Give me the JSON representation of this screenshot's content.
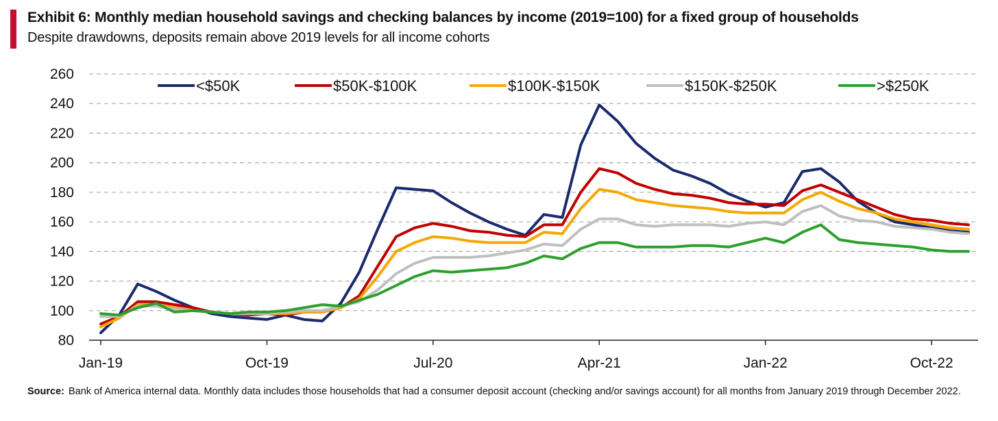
{
  "exhibit": {
    "title": "Exhibit 6: Monthly median household savings and checking balances by income (2019=100)  for a fixed group of households",
    "subtitle": "Despite drawdowns, deposits remain above 2019 levels for all income cohorts",
    "accent_color": "#c8102e"
  },
  "footnote": {
    "source_label": "Source:",
    "source_text": "Bank of America internal data. Monthly data includes those households  that had a consumer  deposit account  (checking  and/or savings account)  for all months from January 2019 through December 2022."
  },
  "chart_data": {
    "type": "line",
    "title": "",
    "xlabel": "",
    "ylabel": "",
    "ylim": [
      80,
      260
    ],
    "yticks": [
      80,
      100,
      120,
      140,
      160,
      180,
      200,
      220,
      240,
      260
    ],
    "grid": true,
    "legend_position": "top",
    "x": [
      "Jan-19",
      "Feb-19",
      "Mar-19",
      "Apr-19",
      "May-19",
      "Jun-19",
      "Jul-19",
      "Aug-19",
      "Sep-19",
      "Oct-19",
      "Nov-19",
      "Dec-19",
      "Jan-20",
      "Feb-20",
      "Mar-20",
      "Apr-20",
      "May-20",
      "Jun-20",
      "Jul-20",
      "Aug-20",
      "Sep-20",
      "Oct-20",
      "Nov-20",
      "Dec-20",
      "Jan-21",
      "Feb-21",
      "Mar-21",
      "Apr-21",
      "May-21",
      "Jun-21",
      "Jul-21",
      "Aug-21",
      "Sep-21",
      "Oct-21",
      "Nov-21",
      "Dec-21",
      "Jan-22",
      "Feb-22",
      "Mar-22",
      "Apr-22",
      "May-22",
      "Jun-22",
      "Jul-22",
      "Aug-22",
      "Sep-22",
      "Oct-22",
      "Nov-22",
      "Dec-22"
    ],
    "xtick_labels": [
      "Jan-19",
      "Oct-19",
      "Jul-20",
      "Apr-21",
      "Jan-22",
      "Oct-22"
    ],
    "series": [
      {
        "name": "<$50K",
        "color": "#1a2a6c",
        "values": [
          85,
          97,
          118,
          113,
          107,
          102,
          98,
          96,
          95,
          94,
          97,
          94,
          93,
          105,
          126,
          155,
          183,
          182,
          181,
          173,
          166,
          160,
          155,
          151,
          165,
          163,
          212,
          239,
          228,
          213,
          203,
          195,
          191,
          186,
          179,
          174,
          170,
          173,
          194,
          196,
          187,
          174,
          166,
          160,
          158,
          156,
          154,
          153
        ]
      },
      {
        "name": "$50K-$100K",
        "color": "#c00000",
        "values": [
          91,
          96,
          106,
          106,
          104,
          102,
          99,
          98,
          97,
          98,
          97,
          99,
          99,
          102,
          110,
          130,
          150,
          156,
          159,
          157,
          154,
          153,
          151,
          150,
          158,
          158,
          180,
          196,
          193,
          186,
          182,
          179,
          178,
          176,
          173,
          172,
          172,
          171,
          181,
          185,
          180,
          175,
          170,
          165,
          162,
          161,
          159,
          158
        ]
      },
      {
        "name": "$100K-$150K",
        "color": "#f5a800",
        "values": [
          89,
          95,
          104,
          104,
          102,
          100,
          99,
          98,
          98,
          98,
          98,
          99,
          99,
          102,
          108,
          123,
          140,
          146,
          150,
          149,
          147,
          146,
          146,
          146,
          153,
          152,
          169,
          182,
          180,
          175,
          173,
          171,
          170,
          169,
          167,
          166,
          166,
          166,
          175,
          180,
          174,
          169,
          166,
          162,
          160,
          158,
          156,
          155
        ]
      },
      {
        "name": "$150K-$250K",
        "color": "#bfbfbf",
        "values": [
          96,
          96,
          103,
          103,
          101,
          100,
          99,
          98,
          98,
          98,
          99,
          100,
          100,
          103,
          106,
          114,
          125,
          132,
          136,
          136,
          136,
          137,
          139,
          141,
          145,
          144,
          155,
          162,
          162,
          158,
          157,
          158,
          158,
          158,
          157,
          159,
          160,
          158,
          167,
          171,
          164,
          161,
          160,
          157,
          156,
          155,
          153,
          152
        ]
      },
      {
        "name": ">$250K",
        "color": "#2ca02c",
        "values": [
          98,
          97,
          102,
          105,
          99,
          100,
          99,
          98,
          99,
          99,
          100,
          102,
          104,
          103,
          107,
          111,
          117,
          123,
          127,
          126,
          127,
          128,
          129,
          132,
          137,
          135,
          142,
          146,
          146,
          143,
          143,
          143,
          144,
          144,
          143,
          146,
          149,
          146,
          153,
          158,
          148,
          146,
          145,
          144,
          143,
          141,
          140,
          140
        ]
      }
    ]
  }
}
